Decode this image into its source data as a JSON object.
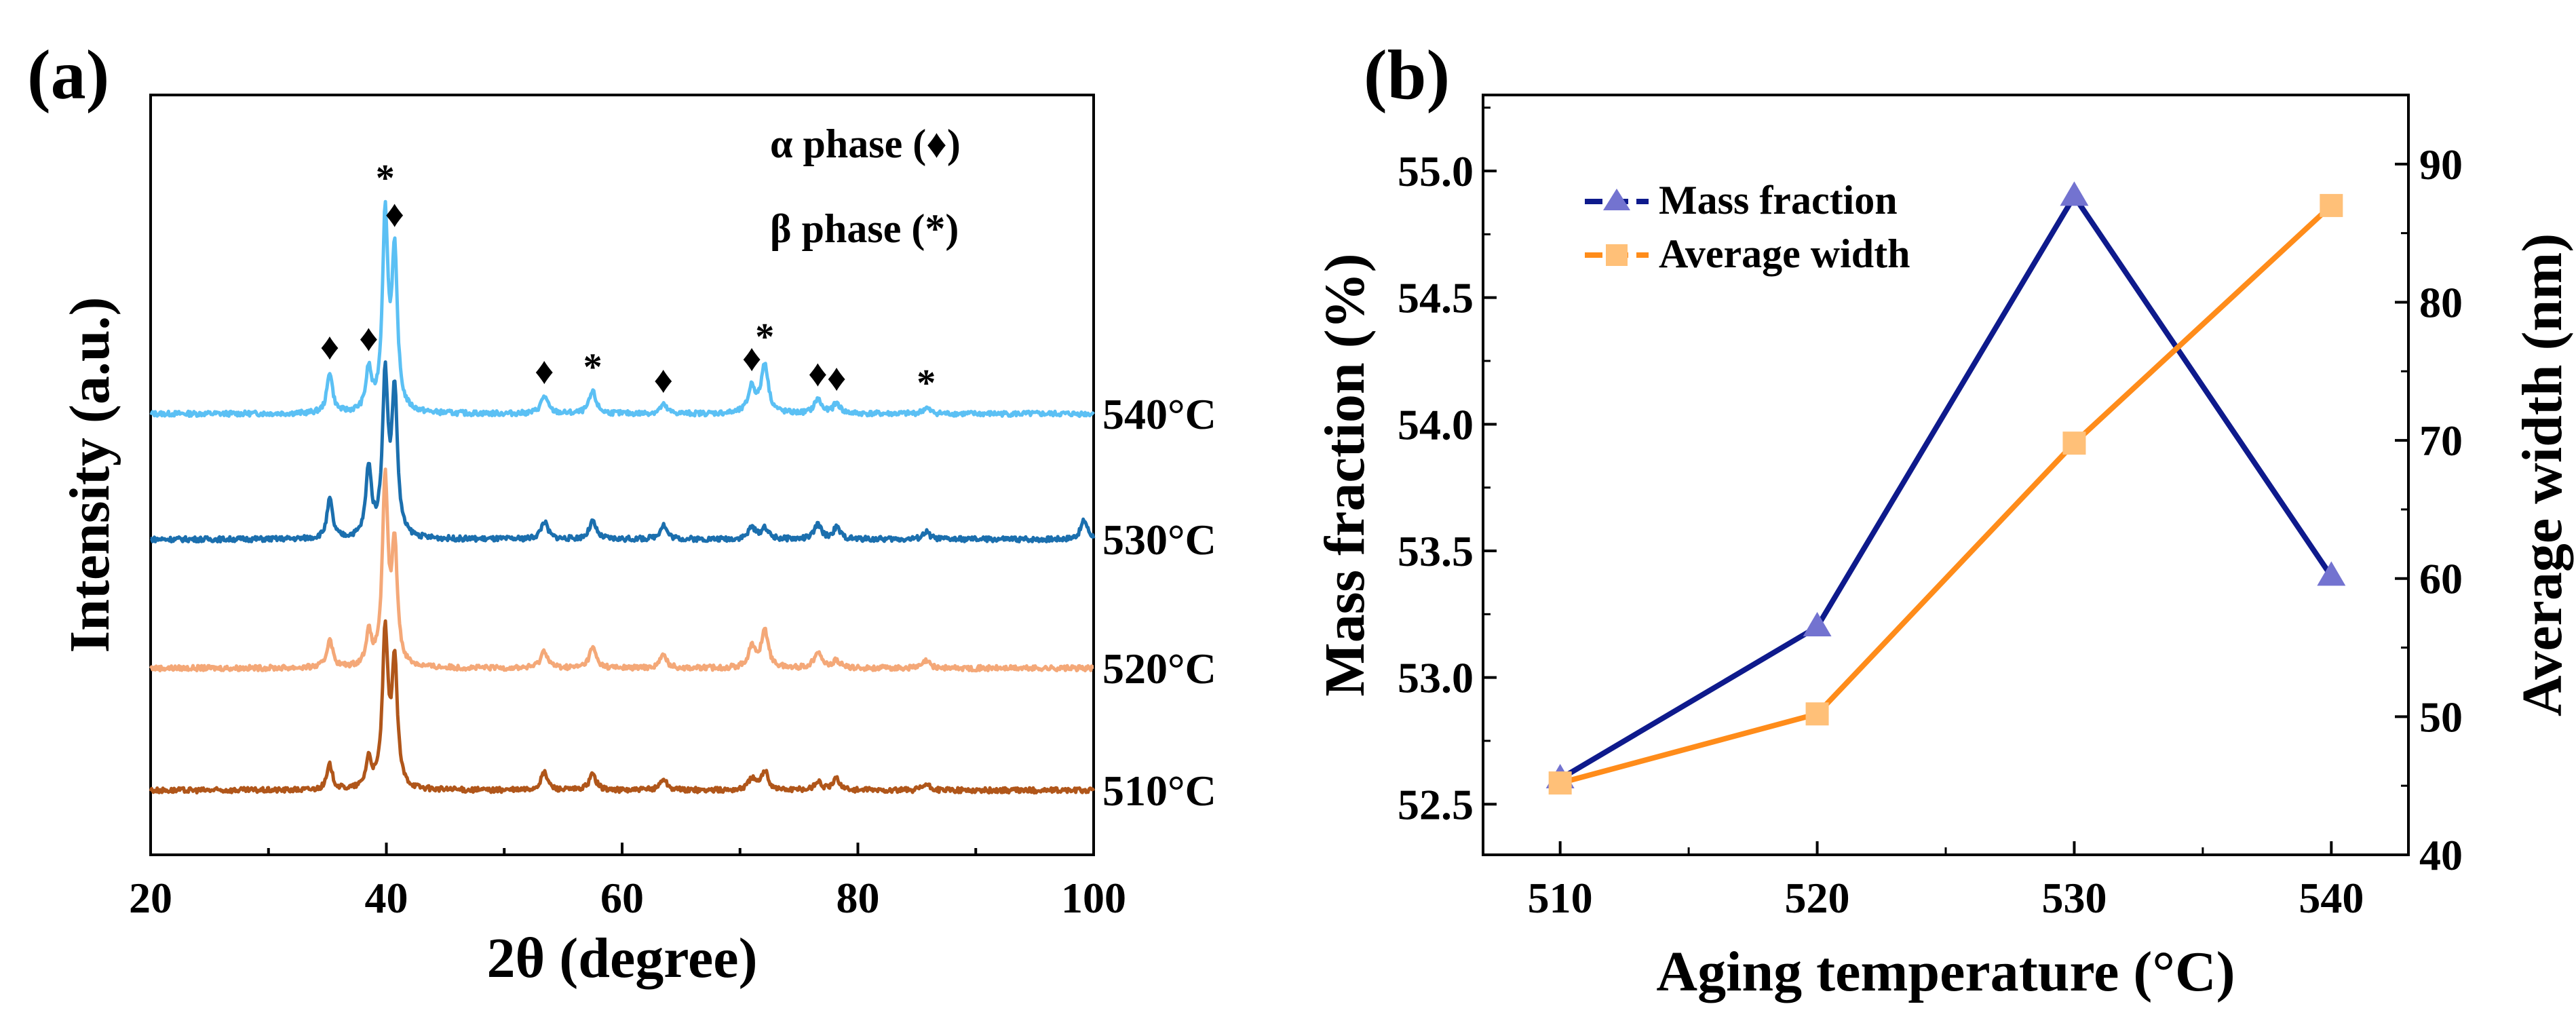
{
  "chart_data": [
    {
      "panel": "(a)",
      "type": "line",
      "xlabel": "2θ (degree)",
      "ylabel": "Intensity (a.u.)",
      "xlim": [
        20,
        100
      ],
      "x_ticks": [
        20,
        40,
        60,
        80,
        100
      ],
      "x_tick_labels": [
        "20",
        "40",
        "60",
        "80",
        "100"
      ],
      "legend": [
        {
          "text": "α phase (",
          "symbol": "♦",
          "close": ")"
        },
        {
          "text": "β phase (",
          "symbol": "*",
          "close": ")"
        }
      ],
      "peak_markers": [
        {
          "x": 35.2,
          "symbol": "♦"
        },
        {
          "x": 38.5,
          "symbol": "♦"
        },
        {
          "x": 39.9,
          "symbol": "*"
        },
        {
          "x": 40.7,
          "symbol": "♦"
        },
        {
          "x": 53.4,
          "symbol": "♦"
        },
        {
          "x": 57.5,
          "symbol": "*"
        },
        {
          "x": 63.5,
          "symbol": "♦"
        },
        {
          "x": 71.0,
          "symbol": "♦"
        },
        {
          "x": 72.1,
          "symbol": "*"
        },
        {
          "x": 76.6,
          "symbol": "♦"
        },
        {
          "x": 78.2,
          "symbol": "♦"
        },
        {
          "x": 85.8,
          "symbol": "*"
        }
      ],
      "series": [
        {
          "name": "540°C",
          "color": "#5bc0f4",
          "offset": 3.0,
          "peaks": [
            [
              35.2,
              0.28
            ],
            [
              38.5,
              0.28
            ],
            [
              39.9,
              1.32
            ],
            [
              40.7,
              1.05
            ],
            [
              53.4,
              0.12
            ],
            [
              57.5,
              0.15
            ],
            [
              63.5,
              0.06
            ],
            [
              71.0,
              0.18
            ],
            [
              72.1,
              0.34
            ],
            [
              76.6,
              0.1
            ],
            [
              78.2,
              0.07
            ],
            [
              85.8,
              0.04
            ]
          ]
        },
        {
          "name": "530°C",
          "color": "#1b6fae",
          "offset": 2.0,
          "peaks": [
            [
              35.2,
              0.27
            ],
            [
              38.5,
              0.48
            ],
            [
              39.9,
              1.08
            ],
            [
              40.7,
              0.98
            ],
            [
              53.4,
              0.12
            ],
            [
              57.5,
              0.12
            ],
            [
              63.5,
              0.1
            ],
            [
              71.0,
              0.08
            ],
            [
              72.1,
              0.08
            ],
            [
              76.6,
              0.1
            ],
            [
              78.2,
              0.08
            ],
            [
              85.8,
              0.05
            ],
            [
              99.2,
              0.13
            ]
          ]
        },
        {
          "name": "520°C",
          "color": "#f4a878",
          "offset": 1.0,
          "peaks": [
            [
              35.2,
              0.2
            ],
            [
              38.5,
              0.22
            ],
            [
              39.9,
              1.26
            ],
            [
              40.7,
              0.8
            ],
            [
              53.4,
              0.12
            ],
            [
              57.5,
              0.14
            ],
            [
              63.5,
              0.09
            ],
            [
              71.0,
              0.14
            ],
            [
              72.1,
              0.26
            ],
            [
              76.6,
              0.12
            ],
            [
              78.2,
              0.05
            ],
            [
              85.8,
              0.05
            ]
          ]
        },
        {
          "name": "510°C",
          "color": "#b0561a",
          "offset": 0.0,
          "peaks": [
            [
              35.2,
              0.17
            ],
            [
              38.5,
              0.2
            ],
            [
              39.9,
              1.05
            ],
            [
              40.7,
              0.85
            ],
            [
              53.4,
              0.12
            ],
            [
              57.5,
              0.11
            ],
            [
              63.5,
              0.08
            ],
            [
              71.0,
              0.08
            ],
            [
              72.1,
              0.13
            ],
            [
              76.6,
              0.06
            ],
            [
              78.2,
              0.08
            ],
            [
              85.8,
              0.04
            ]
          ]
        }
      ]
    },
    {
      "panel": "(b)",
      "type": "line",
      "xlabel": "Aging temperature (°C)",
      "ylabel": "Mass fraction (%)",
      "y2label": "Average width (nm)",
      "categories": [
        510,
        520,
        530,
        540
      ],
      "x_tick_labels": [
        "510",
        "520",
        "530",
        "540"
      ],
      "xlim": [
        507,
        543
      ],
      "ylim": [
        52.3,
        55.3
      ],
      "y_ticks": [
        52.5,
        53.0,
        53.5,
        54.0,
        54.5,
        55.0
      ],
      "y_tick_labels": [
        "52.5",
        "53.0",
        "53.5",
        "54.0",
        "54.5",
        "55.0"
      ],
      "y2lim": [
        40,
        95
      ],
      "y2_ticks": [
        40,
        50,
        60,
        70,
        80,
        90
      ],
      "y2_tick_labels": [
        "40",
        "50",
        "60",
        "70",
        "80",
        "90"
      ],
      "series": [
        {
          "name": "Mass fraction",
          "axis": "left",
          "marker": "triangle",
          "color": "#0e1a8c",
          "marker_color": "#7373d0",
          "values": [
            52.6,
            53.2,
            54.9,
            53.4
          ]
        },
        {
          "name": "Average width",
          "axis": "right",
          "marker": "square",
          "color": "#ff8c1a",
          "marker_color": "#ffc078",
          "values": [
            45.2,
            50.2,
            69.8,
            87.0
          ]
        }
      ]
    }
  ]
}
